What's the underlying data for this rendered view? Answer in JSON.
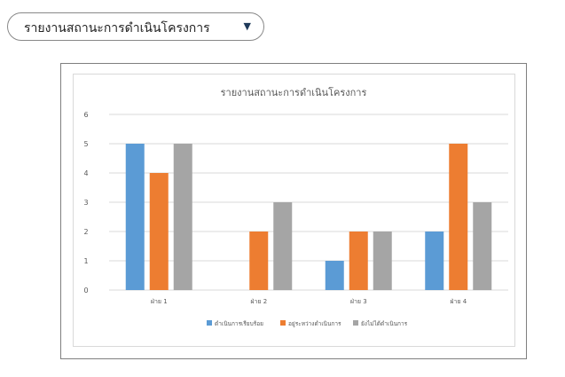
{
  "selector": {
    "value": "รายงานสถานะการดำเนินโครงการ",
    "arrow_icon": "triangle-down-icon"
  },
  "colors": {
    "done": "#5b9bd5",
    "in_progress": "#ed7d31",
    "not_started": "#a5a5a5",
    "grid": "#d9d9d9",
    "axis_text": "#595959",
    "title_text": "#595959"
  },
  "chart_data": {
    "type": "bar",
    "title": "รายงานสถานะการดำเนินโครงการ",
    "xlabel": "",
    "ylabel": "",
    "categories": [
      "ฝ่าย 1",
      "ฝ่าย 2",
      "ฝ่าย 3",
      "ฝ่าย 4"
    ],
    "series": [
      {
        "name": "ดำเนินการเรียบร้อย",
        "values": [
          5,
          0,
          1,
          2
        ],
        "color": "#5b9bd5"
      },
      {
        "name": "อยู่ระหว่างดำเนินการ",
        "values": [
          4,
          2,
          2,
          5
        ],
        "color": "#ed7d31"
      },
      {
        "name": "ยังไม่ได้ดำเนินการ",
        "values": [
          5,
          3,
          2,
          3
        ],
        "color": "#a5a5a5"
      }
    ],
    "ylim": [
      0,
      6
    ],
    "yticks": [
      0,
      1,
      2,
      3,
      4,
      5,
      6
    ],
    "grid": true,
    "legend_position": "bottom"
  }
}
